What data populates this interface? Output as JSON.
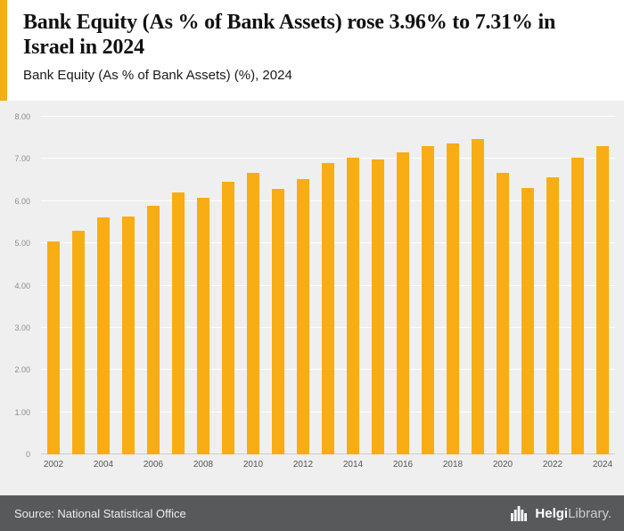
{
  "header": {
    "title": "Bank Equity (As % of Bank Assets) rose 3.96% to 7.31% in Israel in 2024",
    "subtitle": "Bank Equity (As % of Bank Assets) (%), 2024"
  },
  "footer": {
    "source": "Source: National Statistical Office",
    "logo_text_bold": "Helgi",
    "logo_text_regular": "Library."
  },
  "colors": {
    "bar": "#F8AD14",
    "accent": "#F8AD14",
    "chart_bg": "#efefef",
    "footer_bg": "#58595b"
  },
  "chart_data": {
    "type": "bar",
    "title": "Bank Equity (As % of Bank Assets) rose 3.96% to 7.31% in Israel in 2024",
    "subtitle": "Bank Equity (As % of Bank Assets) (%), 2024",
    "xlabel": "",
    "ylabel": "",
    "ylim": [
      0,
      8
    ],
    "ytick_step": 1,
    "ytick_labels": [
      "0",
      "1.00",
      "2.00",
      "3.00",
      "4.00",
      "5.00",
      "6.00",
      "7.00",
      "8.00"
    ],
    "grid": true,
    "legend": false,
    "x": [
      2002,
      2003,
      2004,
      2005,
      2006,
      2007,
      2008,
      2009,
      2010,
      2011,
      2012,
      2013,
      2014,
      2015,
      2016,
      2017,
      2018,
      2019,
      2020,
      2021,
      2022,
      2023,
      2024
    ],
    "xtick_labels": [
      "2002",
      "2004",
      "2006",
      "2008",
      "2010",
      "2012",
      "2014",
      "2016",
      "2018",
      "2020",
      "2022",
      "2024"
    ],
    "values": [
      5.05,
      5.3,
      5.62,
      5.64,
      5.89,
      6.21,
      6.09,
      6.45,
      6.68,
      6.3,
      6.53,
      6.9,
      7.03,
      6.99,
      7.15,
      7.31,
      7.36,
      7.48,
      6.67,
      6.32,
      6.56,
      7.03,
      7.31
    ]
  }
}
